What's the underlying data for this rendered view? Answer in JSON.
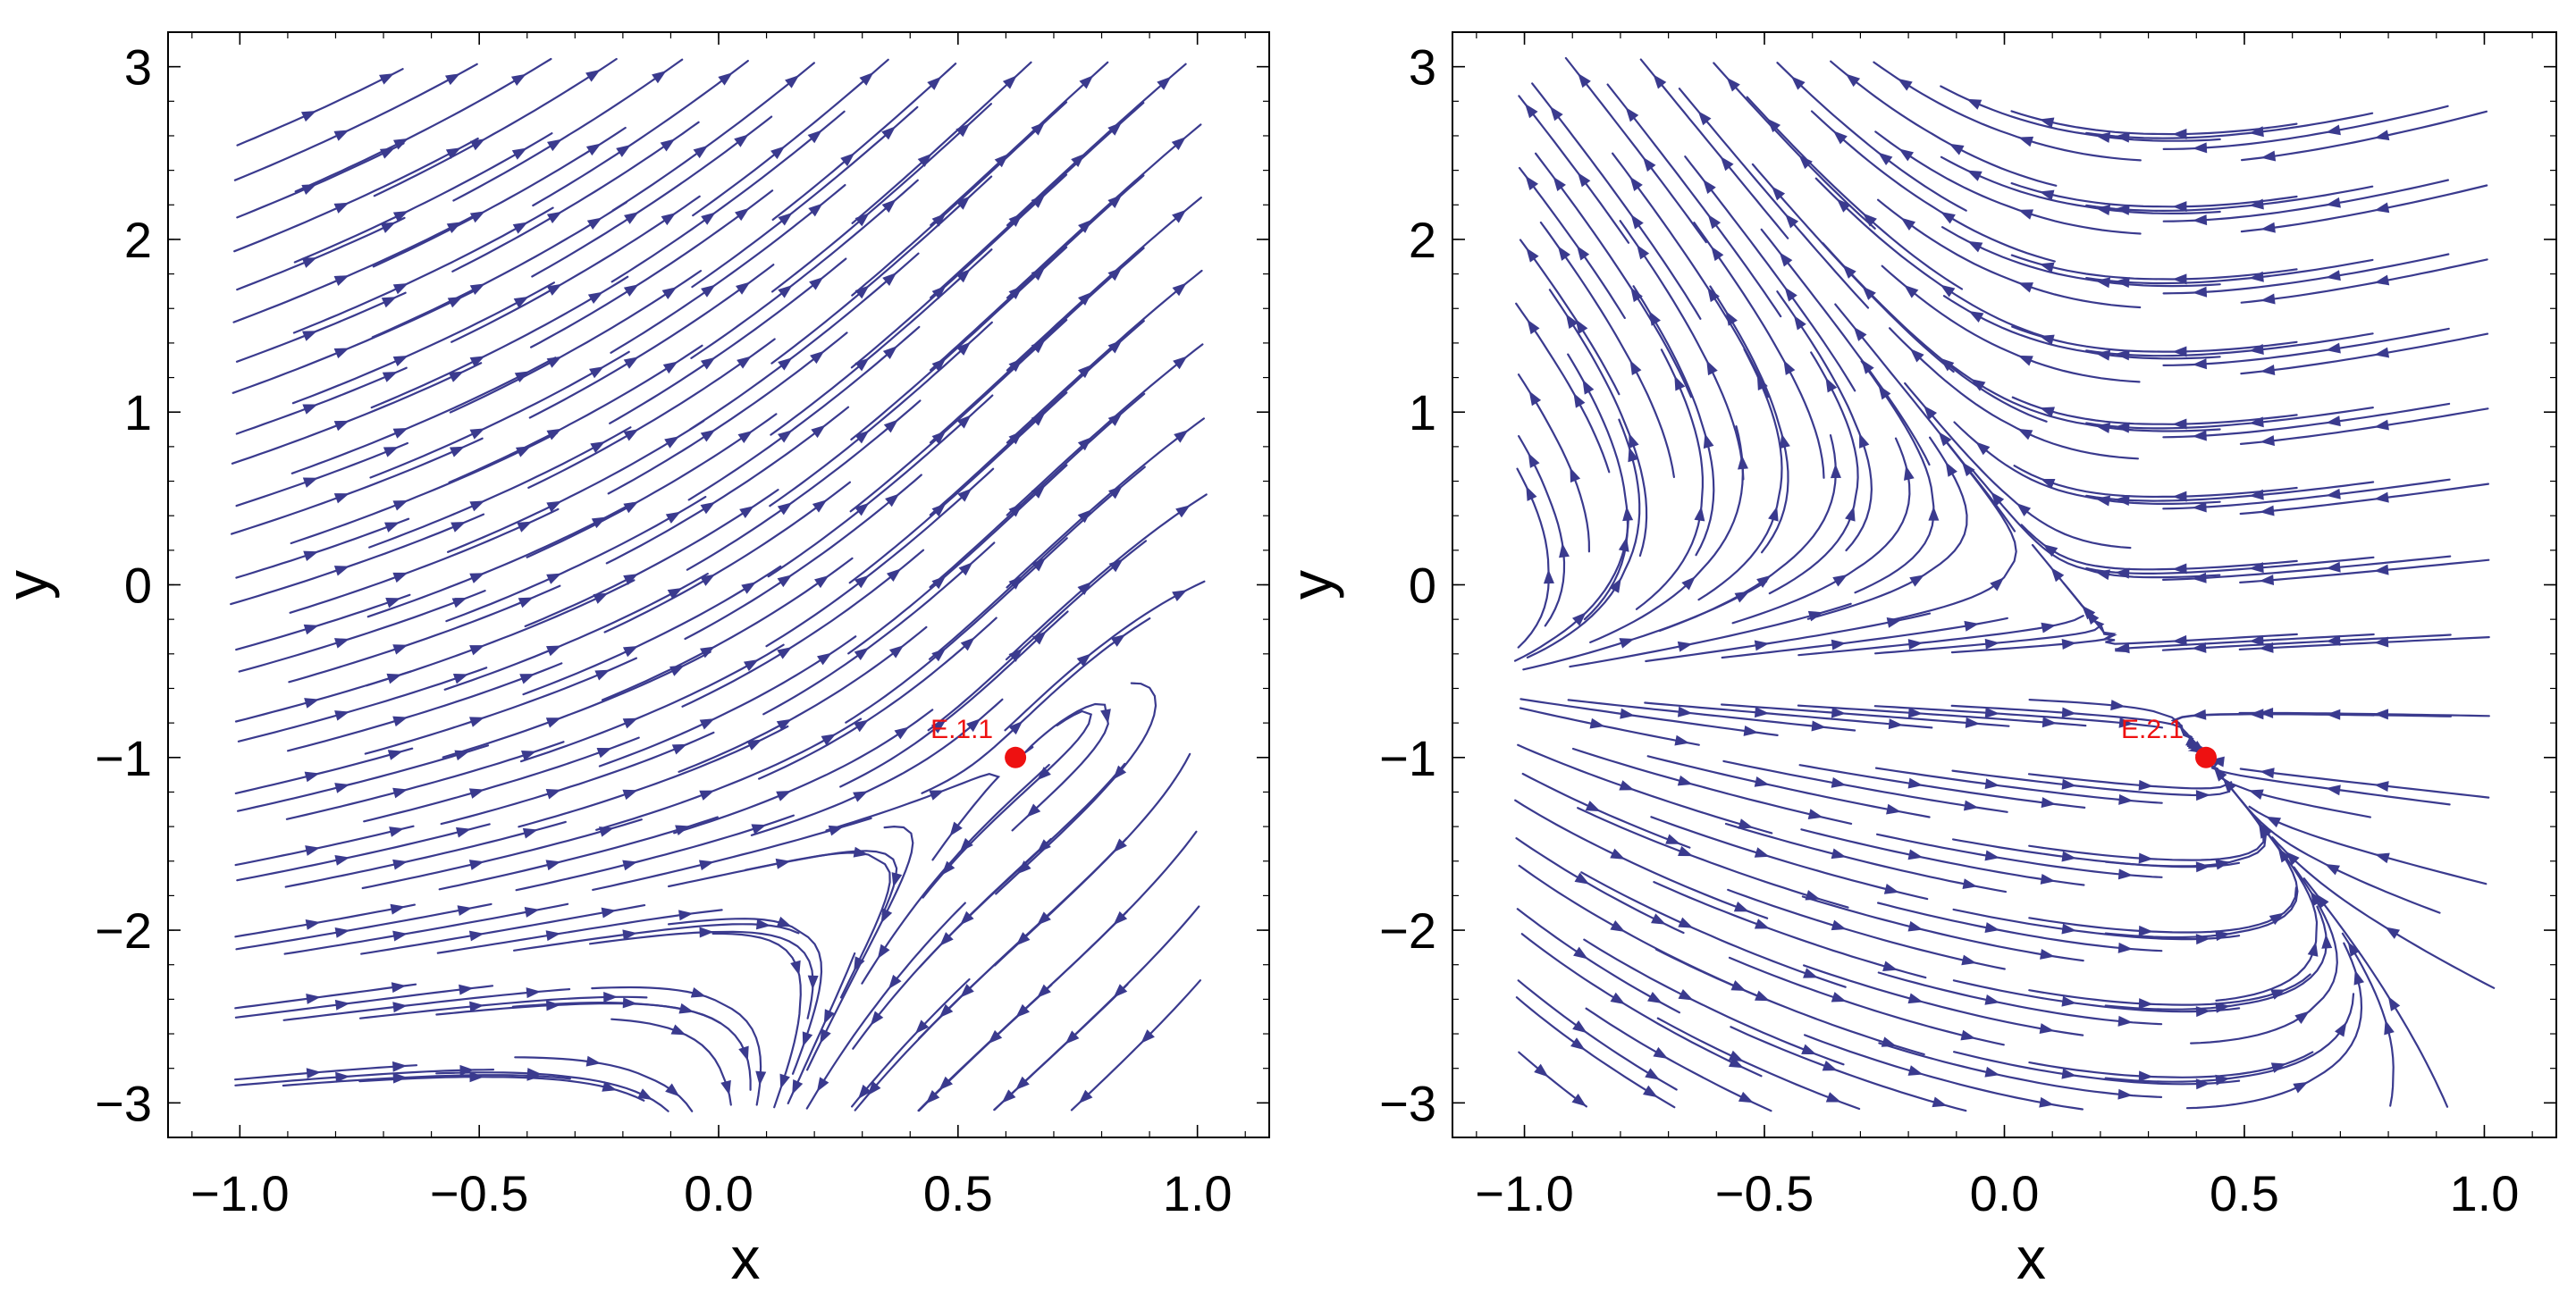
{
  "chart_data": [
    {
      "type": "streamplot",
      "xlabel": "x",
      "ylabel": "y",
      "xlim": [
        -1.15,
        1.15
      ],
      "ylim": [
        -3.2,
        3.2
      ],
      "xticks": [
        -1.0,
        -0.5,
        0.0,
        0.5,
        1.0
      ],
      "xtick_labels": [
        "−1.0",
        "−0.5",
        "0.0",
        "0.5",
        "1.0"
      ],
      "yticks": [
        -3,
        -2,
        -1,
        0,
        1,
        2,
        3
      ],
      "ytick_labels": [
        "−3",
        "−2",
        "−1",
        "0",
        "1",
        "2",
        "3"
      ],
      "stream_color": "#3a3a8e",
      "equilibria": [
        {
          "label": "E.1.1",
          "x": 0.62,
          "y": -1.0,
          "color": "#ee1111"
        }
      ]
    },
    {
      "type": "streamplot",
      "xlabel": "x",
      "ylabel": "y",
      "xlim": [
        -1.15,
        1.15
      ],
      "ylim": [
        -3.2,
        3.2
      ],
      "xticks": [
        -1.0,
        -0.5,
        0.0,
        0.5,
        1.0
      ],
      "xtick_labels": [
        "−1.0",
        "−0.5",
        "0.0",
        "0.5",
        "1.0"
      ],
      "yticks": [
        -3,
        -2,
        -1,
        0,
        1,
        2,
        3
      ],
      "ytick_labels": [
        "−3",
        "−2",
        "−1",
        "0",
        "1",
        "2",
        "3"
      ],
      "stream_color": "#3a3a8e",
      "equilibria": [
        {
          "label": "E.2.1",
          "x": 0.42,
          "y": -1.0,
          "color": "#ee1111"
        }
      ]
    }
  ]
}
